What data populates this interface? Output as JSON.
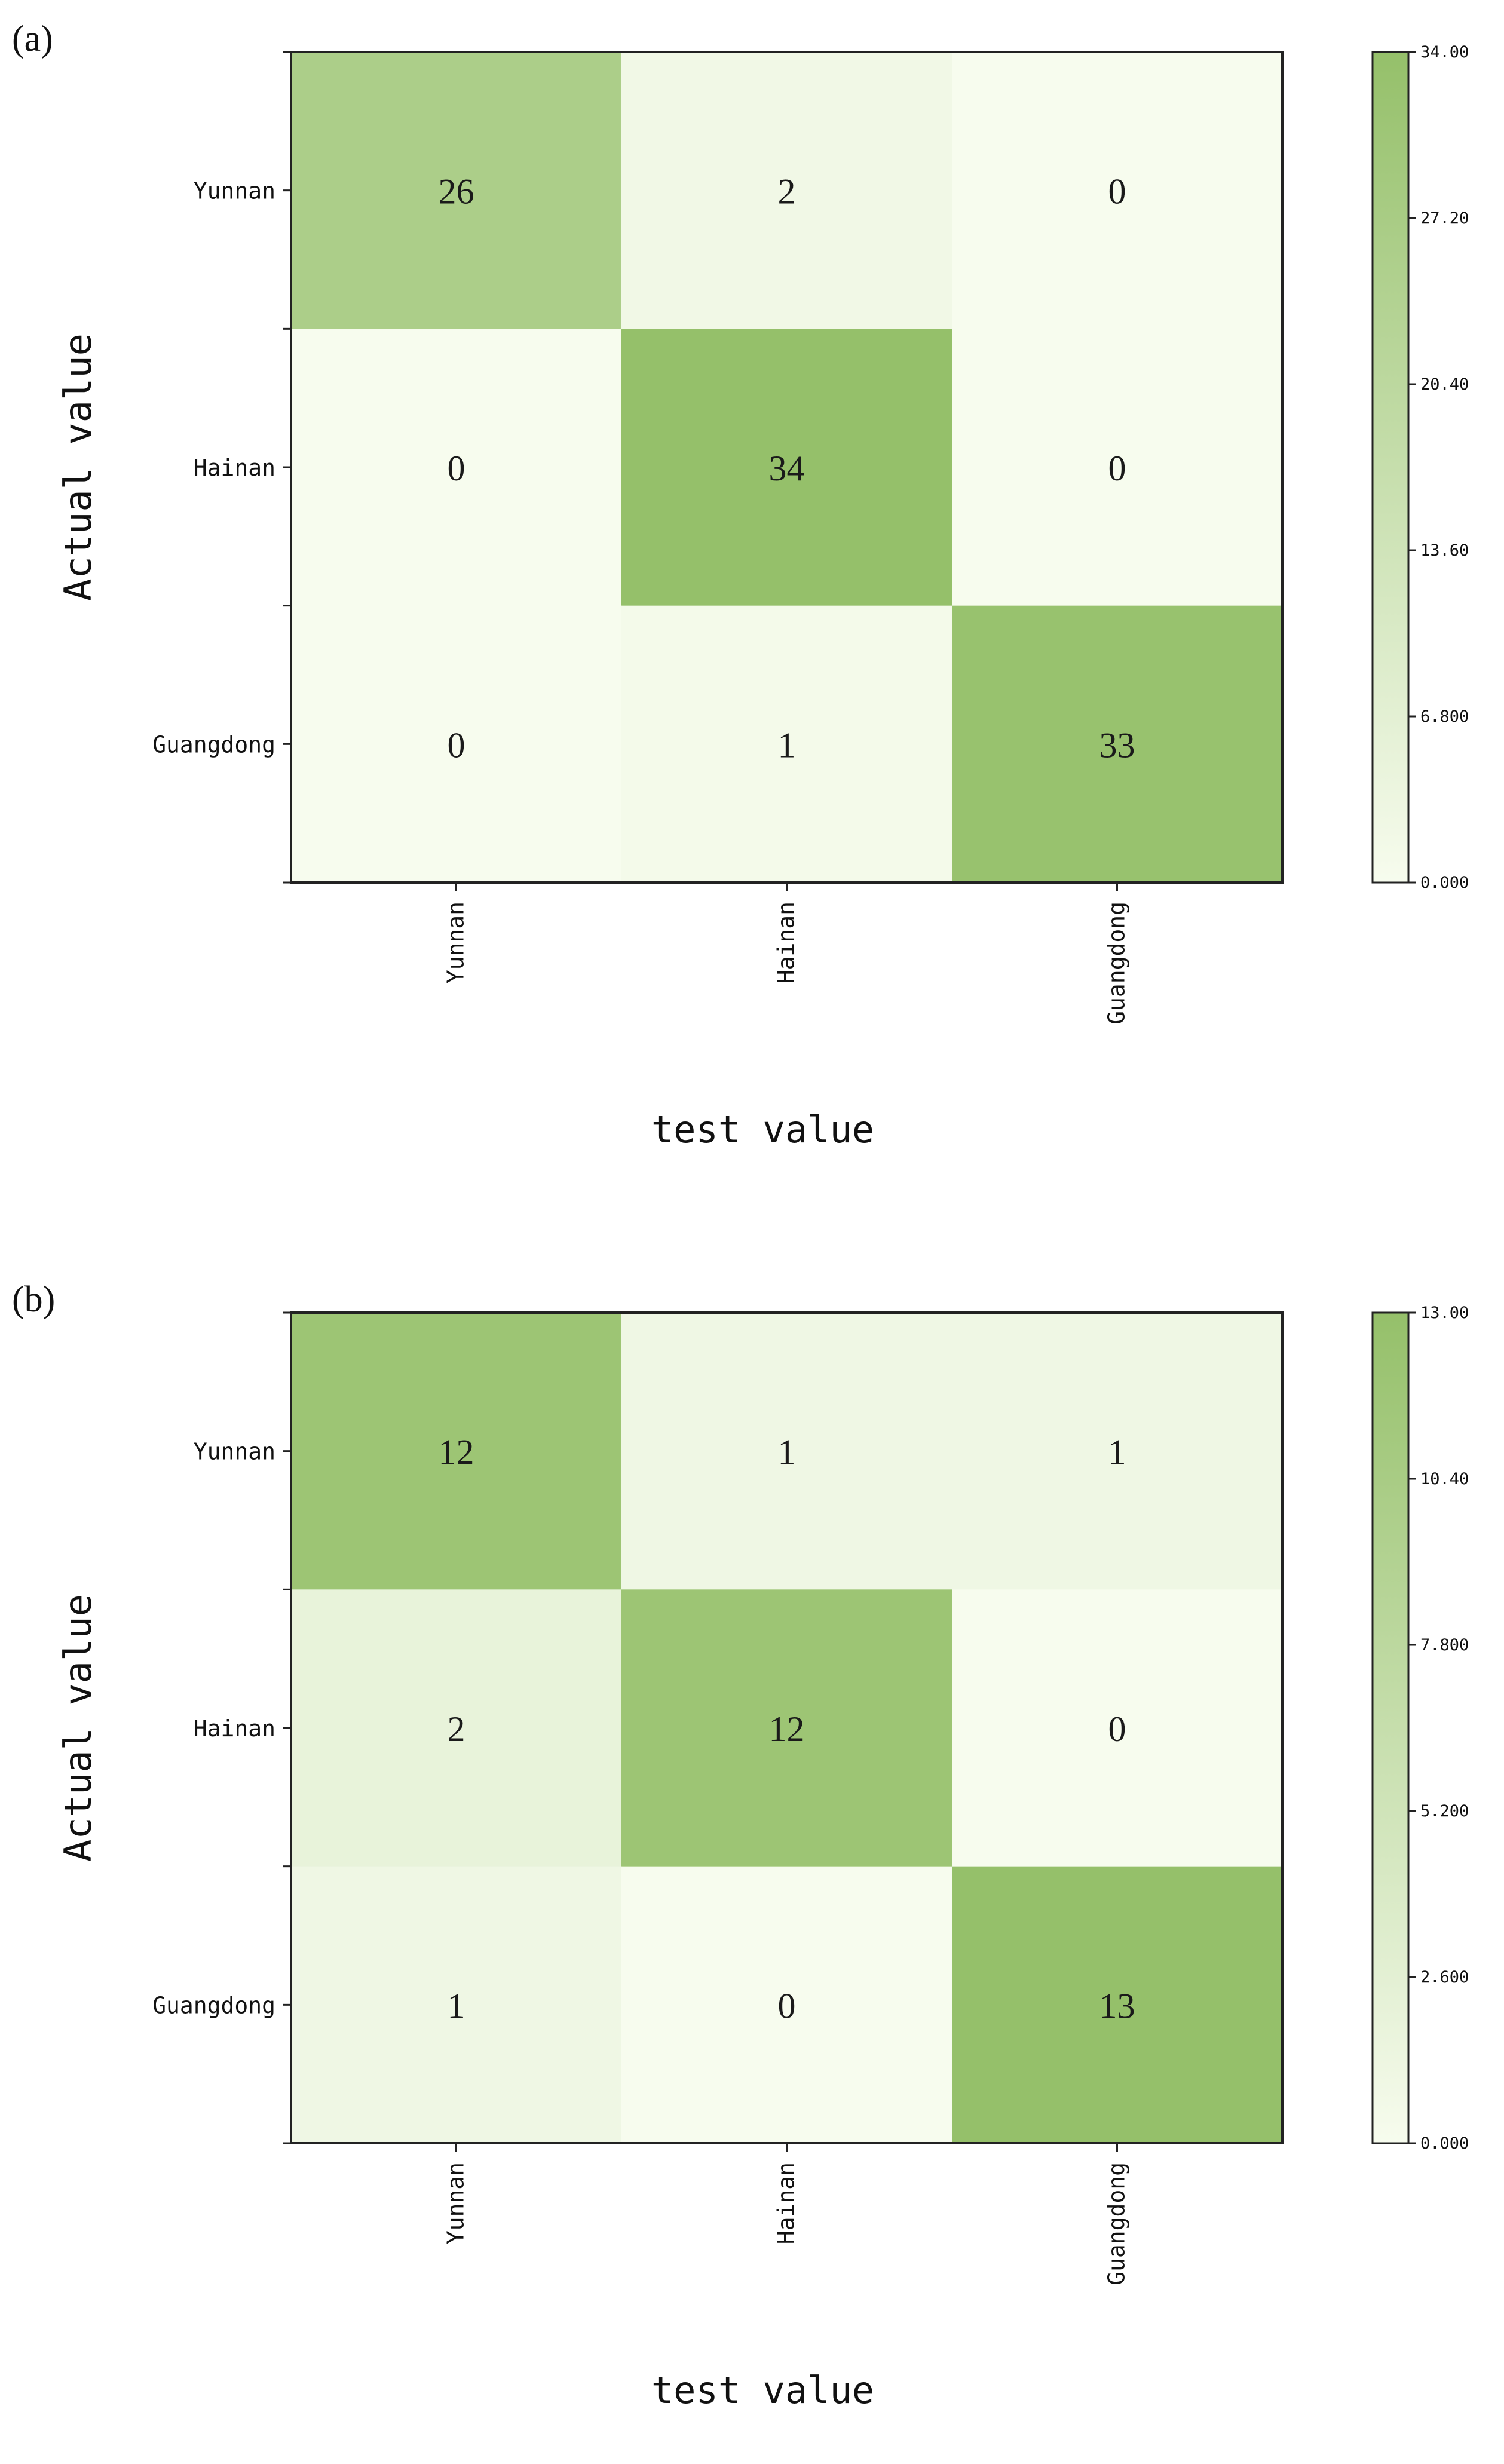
{
  "chart_data": [
    {
      "panel_label": "(a)",
      "type": "heatmap",
      "xlabel": "test value",
      "ylabel": "Actual value",
      "x_categories": [
        "Yunnan",
        "Hainan",
        "Guangdong"
      ],
      "y_categories": [
        "Yunnan",
        "Hainan",
        "Guangdong"
      ],
      "values": [
        [
          26,
          2,
          0
        ],
        [
          0,
          34,
          0
        ],
        [
          0,
          1,
          33
        ]
      ],
      "vmin": 0,
      "vmax": 34,
      "colorbar_ticks": [
        0,
        6.8,
        13.6,
        20.4,
        27.2,
        34
      ],
      "colorbar_tick_labels": [
        "0.000",
        "6.800",
        "13.60",
        "20.40",
        "27.20",
        "34.00"
      ],
      "colormap": [
        "#f7fcee",
        "#95c06a"
      ]
    },
    {
      "panel_label": "(b)",
      "type": "heatmap",
      "xlabel": "test value",
      "ylabel": "Actual value",
      "x_categories": [
        "Yunnan",
        "Hainan",
        "Guangdong"
      ],
      "y_categories": [
        "Yunnan",
        "Hainan",
        "Guangdong"
      ],
      "values": [
        [
          12,
          1,
          1
        ],
        [
          2,
          12,
          0
        ],
        [
          1,
          0,
          13
        ]
      ],
      "vmin": 0,
      "vmax": 13,
      "colorbar_ticks": [
        0,
        2.6,
        5.2,
        7.8,
        10.4,
        13
      ],
      "colorbar_tick_labels": [
        "0.000",
        "2.600",
        "5.200",
        "7.800",
        "10.40",
        "13.00"
      ],
      "colormap": [
        "#f7fcee",
        "#95c06a"
      ]
    }
  ]
}
